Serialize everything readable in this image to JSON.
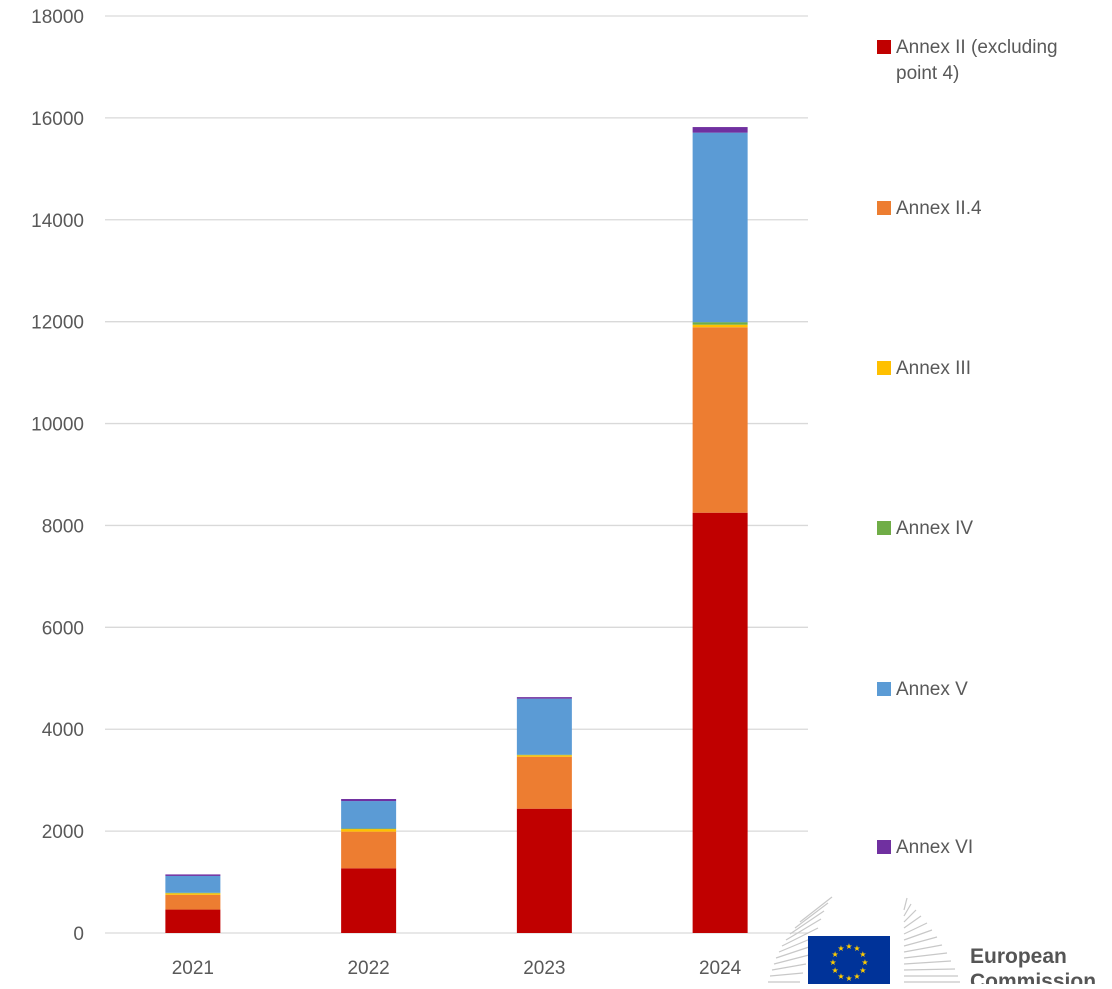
{
  "chart_data": {
    "type": "bar",
    "stacked": true,
    "title": "",
    "xlabel": "",
    "ylabel": "",
    "categories": [
      "2021",
      "2022",
      "2023",
      "2024"
    ],
    "ylim": [
      0,
      18000
    ],
    "yticks": [
      0,
      2000,
      4000,
      6000,
      8000,
      10000,
      12000,
      14000,
      16000,
      18000
    ],
    "grid": "horizontal",
    "legend_position": "right",
    "series": [
      {
        "name": "Annex II (excluding point 4)",
        "color": "#C00000",
        "values": [
          460,
          1270,
          2440,
          8250
        ]
      },
      {
        "name": "Annex II.4",
        "color": "#ED7D31",
        "values": [
          290,
          720,
          1020,
          3640
        ]
      },
      {
        "name": "Annex III",
        "color": "#FFC000",
        "values": [
          30,
          50,
          30,
          50
        ]
      },
      {
        "name": "Annex IV",
        "color": "#70AD47",
        "values": [
          10,
          10,
          10,
          50
        ]
      },
      {
        "name": "Annex V",
        "color": "#5B9BD5",
        "values": [
          330,
          540,
          1100,
          3720
        ]
      },
      {
        "name": "Annex VI",
        "color": "#7030A0",
        "values": [
          30,
          40,
          30,
          110
        ]
      }
    ]
  },
  "logo": {
    "text_line1": "European",
    "text_line2": "Commission"
  }
}
